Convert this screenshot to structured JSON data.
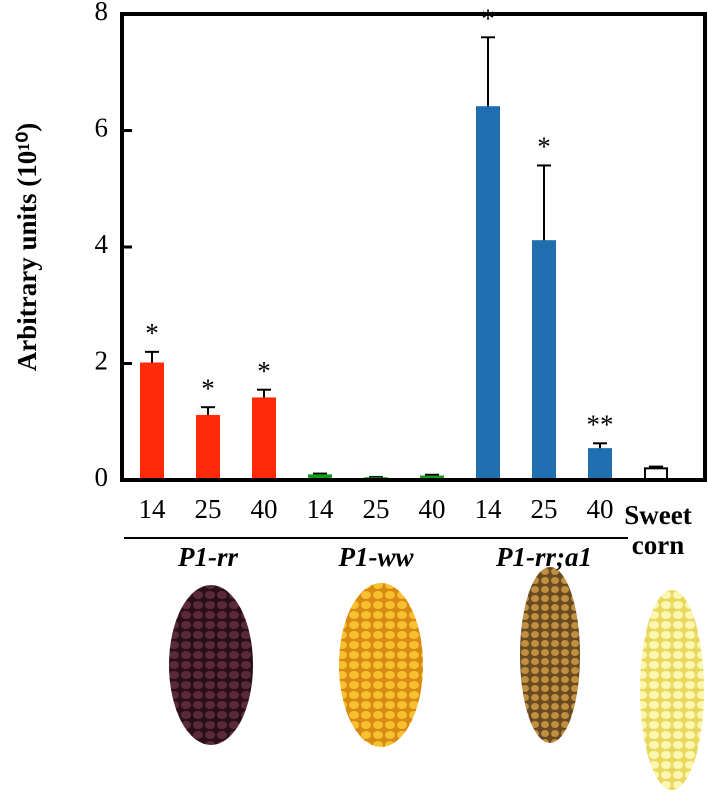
{
  "chart_data": {
    "type": "bar",
    "ylabel": "Arbitrary units (10¹⁰)",
    "categories": [
      "14",
      "25",
      "40",
      "14",
      "25",
      "40",
      "14",
      "25",
      "40",
      "Sweet corn"
    ],
    "groups": [
      "P1-rr",
      "P1-ww",
      "P1-rr;a1"
    ],
    "values": [
      2.0,
      1.1,
      1.4,
      0.08,
      0.03,
      0.06,
      6.4,
      4.1,
      0.53,
      0.2
    ],
    "errors": [
      0.2,
      0.15,
      0.15,
      0.03,
      0.02,
      0.03,
      1.2,
      1.3,
      0.1,
      0.03
    ],
    "annotations": [
      "*",
      "*",
      "*",
      null,
      null,
      null,
      "*",
      "*",
      "**",
      null
    ],
    "colors": [
      "#ff2a0a",
      "#ff2a0a",
      "#ff2a0a",
      "#1a9a1a",
      "#1a9a1a",
      "#1a9a1a",
      "#1f6fb0",
      "#1f6fb0",
      "#1f6fb0",
      "#ffffff"
    ],
    "ylim": [
      0,
      8
    ],
    "yticks": [
      0,
      2,
      4,
      6,
      8
    ],
    "grid": false
  }
}
